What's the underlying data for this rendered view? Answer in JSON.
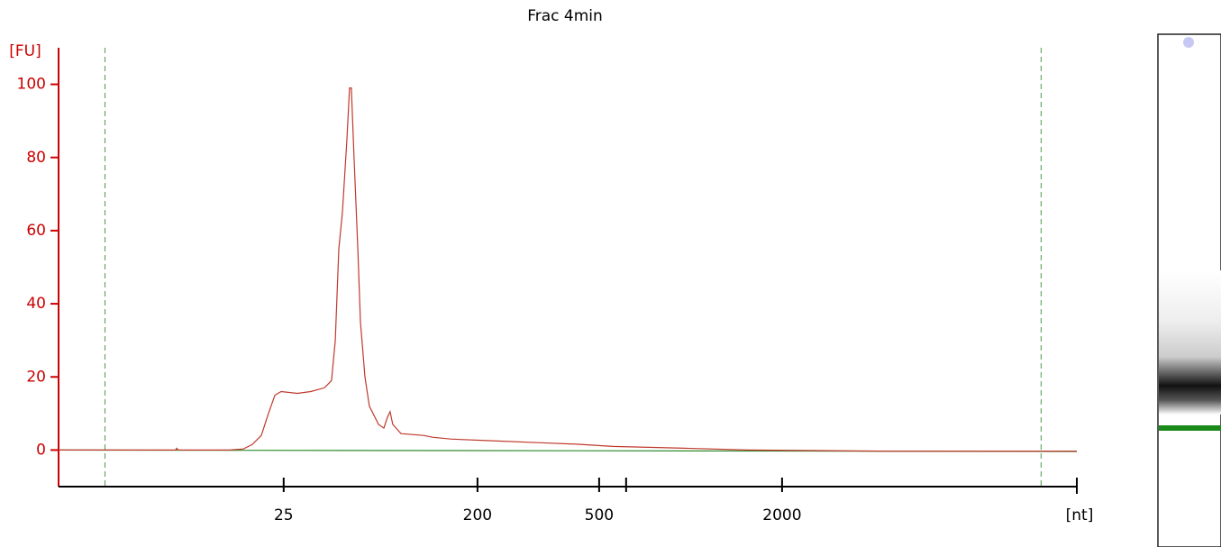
{
  "chart_data": {
    "type": "line",
    "title": "Frac 4min",
    "y_label": "[FU]",
    "x_label": "[nt]",
    "xlim": [
      15,
      72
    ],
    "ylim": [
      -10,
      110
    ],
    "xticks": [
      {
        "value": 27.6,
        "label": "25"
      },
      {
        "value": 38.45,
        "label": "200"
      },
      {
        "value": 45.26,
        "label": "500"
      },
      {
        "value": 46.77,
        "label": null
      },
      {
        "value": 55.5,
        "label": "2000"
      }
    ],
    "yticks": [
      0,
      20,
      40,
      60,
      80,
      100
    ],
    "markers": [
      17.6,
      70.0
    ],
    "series": [
      {
        "color": "#c0392b",
        "x": [
          15.0,
          21.56,
          21.61,
          21.71,
          24.58,
          25.34,
          25.84,
          26.35,
          26.75,
          27.11,
          27.46,
          28.37,
          29.12,
          29.88,
          30.28,
          30.49,
          30.69,
          30.89,
          31.14,
          31.29,
          31.39,
          31.54,
          31.75,
          31.9,
          32.15,
          32.4,
          32.91,
          33.21,
          33.41,
          33.56,
          33.71,
          34.17,
          35.43,
          35.93,
          36.94,
          38.96,
          41.99,
          44.0,
          46.02,
          50.06,
          53.59,
          61.15,
          72.0
        ],
        "values": [
          0,
          0,
          0.5,
          0,
          0,
          0.3,
          1.5,
          4,
          10,
          15,
          16,
          15.5,
          16,
          17,
          19,
          30,
          55,
          65,
          85,
          99,
          99,
          80,
          55,
          35,
          20,
          12,
          7,
          6,
          9,
          10.5,
          7,
          4.5,
          4,
          3.5,
          3,
          2.6,
          2,
          1.6,
          1,
          0.5,
          0,
          -0.3,
          -0.3
        ]
      },
      {
        "color": "#2e8b2e",
        "x": [
          15.0,
          72.0
        ],
        "values": [
          0,
          -0.4
        ]
      }
    ]
  }
}
